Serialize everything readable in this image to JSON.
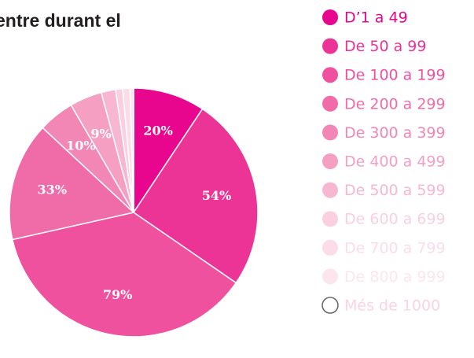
{
  "chart_data": {
    "type": "pie",
    "title": "entre durant el",
    "categories": [
      "D’1 a 49",
      "De 50 a 99",
      "De 100 a 199",
      "De 200 a 299",
      "De 300 a 399",
      "De 400 a 499",
      "De 500 a 599",
      "De 600 a 699",
      "De 700 a 799",
      "De 800 a 999",
      "Més de 1000"
    ],
    "values": [
      20,
      54,
      79,
      33,
      10,
      9,
      4,
      2,
      2,
      1,
      0
    ],
    "value_labels": [
      "20%",
      "54%",
      "79%",
      "33%",
      "10%",
      "9%",
      null,
      null,
      null,
      null,
      null
    ],
    "colors": [
      "#e8068f",
      "#ec3396",
      "#ef519f",
      "#f06ca8",
      "#f286b5",
      "#f59fc3",
      "#f7b6d1",
      "#fad0e1",
      "#fcdce8",
      "#fde5ee",
      "#ffffff"
    ],
    "legend": "right"
  }
}
